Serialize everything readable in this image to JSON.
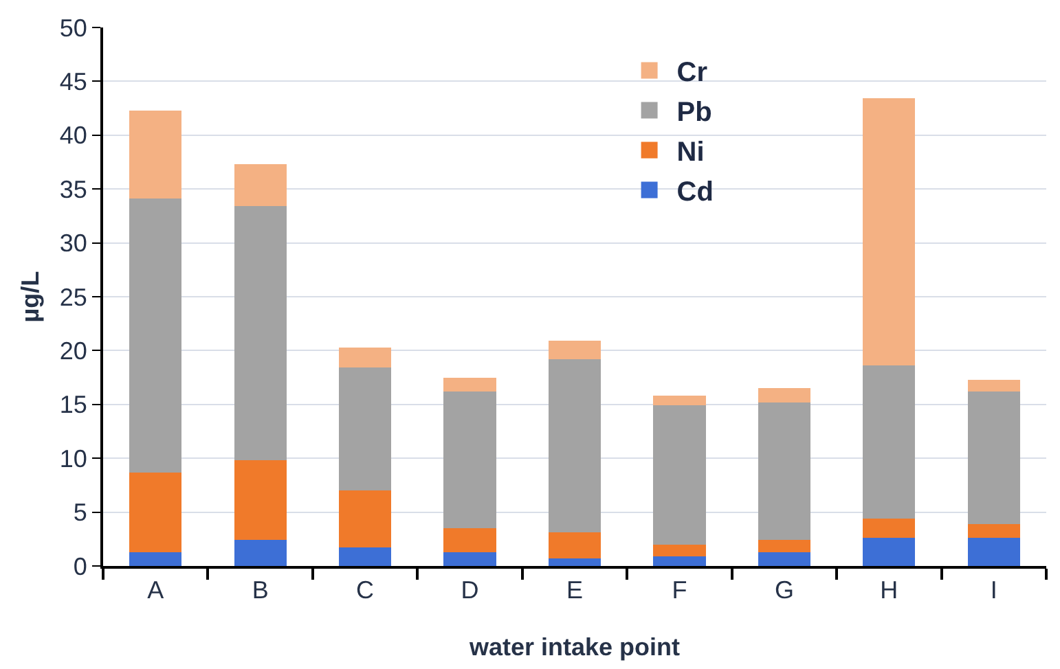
{
  "chart_data": {
    "type": "bar",
    "stacked": true,
    "xlabel": "water intake point",
    "ylabel": "µg/L",
    "categories": [
      "A",
      "B",
      "C",
      "D",
      "E",
      "F",
      "G",
      "H",
      "I"
    ],
    "series": [
      {
        "name": "Cd",
        "color": "#3d6fd6",
        "values": [
          1.3,
          2.4,
          1.7,
          1.3,
          0.7,
          0.9,
          1.3,
          2.6,
          2.6
        ]
      },
      {
        "name": "Ni",
        "color": "#f07a2a",
        "values": [
          7.4,
          7.4,
          5.3,
          2.2,
          2.4,
          1.1,
          1.1,
          1.8,
          1.3
        ]
      },
      {
        "name": "Pb",
        "color": "#a3a3a3",
        "values": [
          25.4,
          23.6,
          11.4,
          12.7,
          16.1,
          12.9,
          12.8,
          14.2,
          12.3
        ]
      },
      {
        "name": "Cr",
        "color": "#f4b183",
        "values": [
          8.2,
          3.9,
          1.9,
          1.3,
          1.7,
          0.9,
          1.3,
          24.8,
          1.1
        ]
      }
    ],
    "ylim": [
      0,
      50
    ],
    "yticks": [
      0,
      5,
      10,
      15,
      20,
      25,
      30,
      35,
      40,
      45,
      50
    ],
    "grid": "y",
    "legend": "top"
  }
}
